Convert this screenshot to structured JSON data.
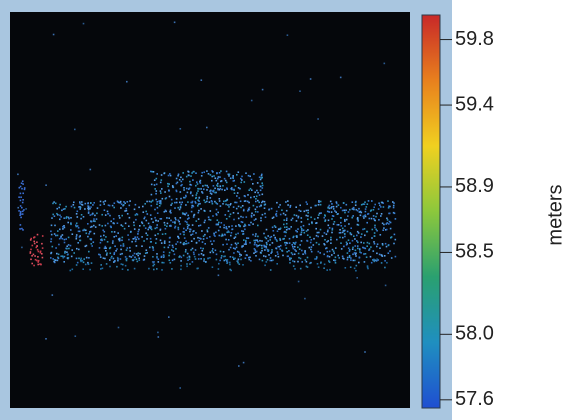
{
  "chart_data": {
    "type": "colorbar",
    "colorbar": {
      "label": "meters",
      "lim": [
        57.55,
        59.95
      ],
      "ticks": [
        57.6,
        {
          "value": 58,
          "label": "58.0"
        },
        58.5,
        58.9,
        59.4,
        59.8
      ],
      "colors": [
        "#1f4fd1",
        "#1f8fc0",
        "#2aa070",
        "#8cc83c",
        "#f0d020",
        "#e8801e",
        "#c82828"
      ]
    }
  }
}
